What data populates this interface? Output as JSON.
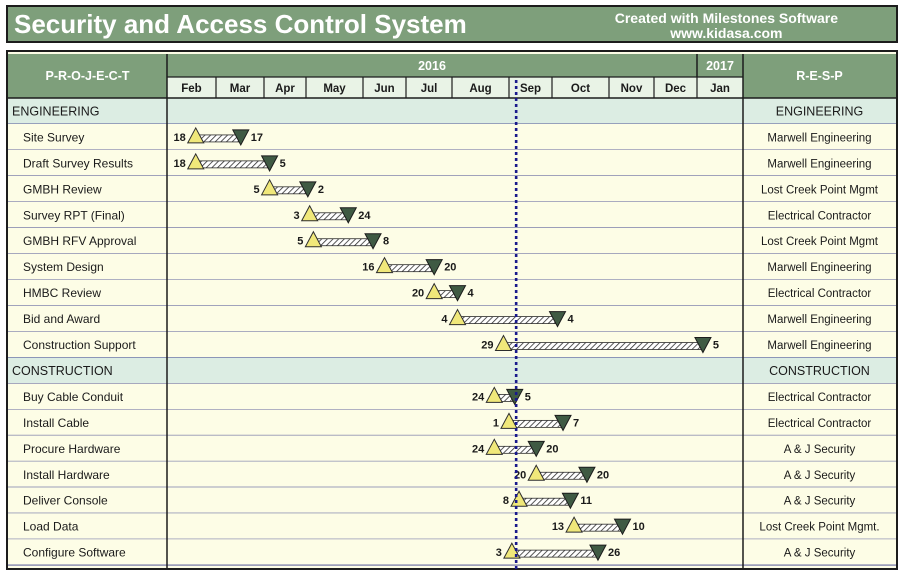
{
  "header": {
    "title": "Security and Access Control System",
    "credit_line1": "Created with Milestones Software",
    "credit_line2": "www.kidasa.com"
  },
  "columns": {
    "project_header": "P-R-O-J-E-C-T",
    "resp_header": "R-E-S-P"
  },
  "colors": {
    "header_green": "#7e9f7b",
    "row_fill": "#fdfde6",
    "section_fill": "#dcede3",
    "grid_blue": "#3b3f8c",
    "start_marker": "#f0e87a",
    "end_marker": "#3f5a43",
    "today_line": "#1a1a8c"
  },
  "chart_data": {
    "type": "gantt",
    "years": [
      {
        "label": "2016",
        "months": 11
      },
      {
        "label": "2017",
        "months": 1
      }
    ],
    "months": [
      "Feb",
      "Mar",
      "Apr",
      "May",
      "Jun",
      "Jul",
      "Aug",
      "Sep",
      "Oct",
      "Nov",
      "Dec",
      "Jan"
    ],
    "today_marker": "2016-09-06",
    "rows": [
      {
        "kind": "section",
        "label": "ENGINEERING",
        "resp": "ENGINEERING"
      },
      {
        "kind": "task",
        "label": "Site Survey",
        "start": "2016-02-18",
        "end": "2016-03-17",
        "start_label": "18",
        "end_label": "17",
        "resp": "Marwell Engineering"
      },
      {
        "kind": "task",
        "label": "Draft Survey Results",
        "start": "2016-02-18",
        "end": "2016-04-05",
        "start_label": "18",
        "end_label": "5",
        "resp": "Marwell Engineering"
      },
      {
        "kind": "task",
        "label": "GMBH Review",
        "start": "2016-04-05",
        "end": "2016-05-02",
        "start_label": "5",
        "end_label": "2",
        "resp": "Lost Creek Point Mgmt"
      },
      {
        "kind": "task",
        "label": "Survey RPT (Final)",
        "start": "2016-05-03",
        "end": "2016-05-24",
        "start_label": "3",
        "end_label": "24",
        "resp": "Electrical Contractor"
      },
      {
        "kind": "task",
        "label": "GMBH RFV Approval",
        "start": "2016-05-05",
        "end": "2016-06-08",
        "start_label": "5",
        "end_label": "8",
        "resp": "Lost Creek Point Mgmt"
      },
      {
        "kind": "task",
        "label": "System Design",
        "start": "2016-06-16",
        "end": "2016-07-20",
        "start_label": "16",
        "end_label": "20",
        "resp": "Marwell Engineering"
      },
      {
        "kind": "task",
        "label": "HMBC Review",
        "start": "2016-07-20",
        "end": "2016-08-04",
        "start_label": "20",
        "end_label": "4",
        "resp": "Electrical Contractor"
      },
      {
        "kind": "task",
        "label": "Bid and Award",
        "start": "2016-08-04",
        "end": "2016-10-04",
        "start_label": "4",
        "end_label": "4",
        "resp": "Marwell Engineering"
      },
      {
        "kind": "task",
        "label": "Construction Support",
        "start": "2016-08-29",
        "end": "2017-01-05",
        "start_label": "29",
        "end_label": "5",
        "resp": "Marwell Engineering"
      },
      {
        "kind": "section",
        "label": "CONSTRUCTION",
        "resp": "CONSTRUCTION"
      },
      {
        "kind": "task",
        "label": "Buy Cable Conduit",
        "start": "2016-08-24",
        "end": "2016-09-05",
        "start_label": "24",
        "end_label": "5",
        "resp": "Electrical Contractor"
      },
      {
        "kind": "task",
        "label": "Install Cable",
        "start": "2016-09-01",
        "end": "2016-10-07",
        "start_label": "1",
        "end_label": "7",
        "resp": "Electrical Contractor"
      },
      {
        "kind": "task",
        "label": "Procure Hardware",
        "start": "2016-08-24",
        "end": "2016-09-20",
        "start_label": "24",
        "end_label": "20",
        "resp": "A & J Security"
      },
      {
        "kind": "task",
        "label": "Install Hardware",
        "start": "2016-09-20",
        "end": "2016-10-20",
        "start_label": "20",
        "end_label": "20",
        "resp": "A & J Security"
      },
      {
        "kind": "task",
        "label": "Deliver Console",
        "start": "2016-09-08",
        "end": "2016-10-11",
        "start_label": "8",
        "end_label": "11",
        "resp": "A & J Security"
      },
      {
        "kind": "task",
        "label": "Load Data",
        "start": "2016-10-13",
        "end": "2016-11-10",
        "start_label": "13",
        "end_label": "10",
        "resp": "Lost Creek Point Mgmt."
      },
      {
        "kind": "task",
        "label": "Configure Software",
        "start": "2016-09-03",
        "end": "2016-10-26",
        "start_label": "3",
        "end_label": "26",
        "resp": "A & J Security"
      }
    ]
  }
}
